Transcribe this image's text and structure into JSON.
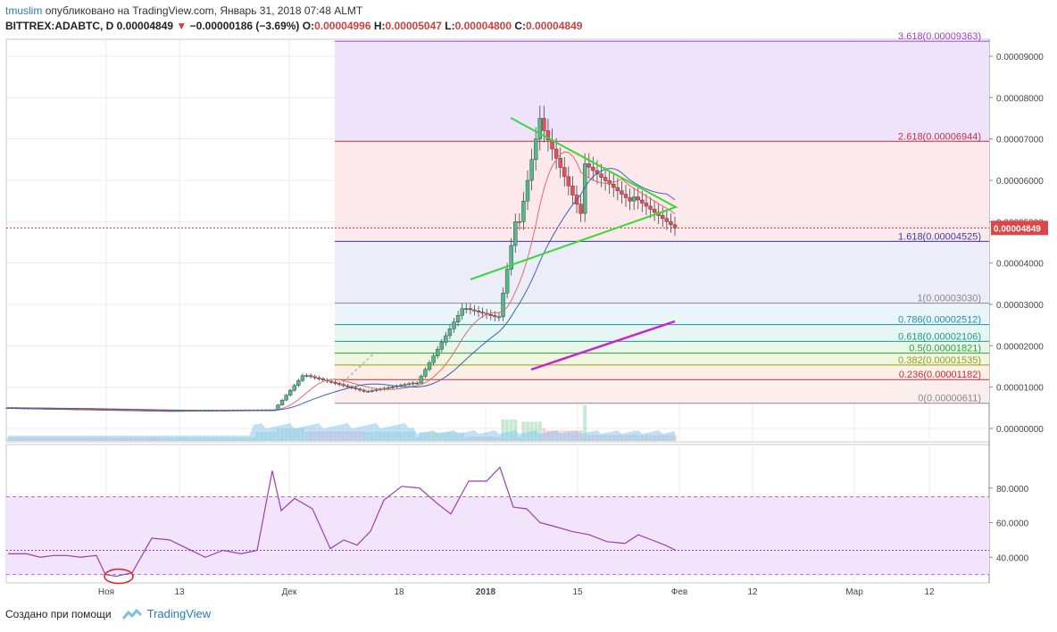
{
  "header": {
    "author": "tmuslim",
    "published": "опубликовано на TradingView.com, Январь 31, 2018 07:48 ALMT",
    "symbol": "BITTREX:ADABTC, D",
    "last": "0.00004849",
    "change": "−0.00000186 (−3.69%)",
    "o_label": "O:",
    "o_value": "0.00004996",
    "h_label": "H:",
    "h_value": "0.00005047",
    "l_label": "L:",
    "l_value": "0.00004800",
    "c_label": "C:",
    "c_value": "0.00004849"
  },
  "footer": {
    "created_with": "Создано при помощи",
    "brand": "TradingView"
  },
  "colors": {
    "up": "#53b987",
    "down": "#eb4d5c",
    "triangle": "#39d839",
    "trend": "#cc22cc",
    "rsi": "#9b3fb0"
  },
  "chart_data": {
    "type": "candlestick",
    "price_axis_labels": [
      "0.00009000",
      "0.00008000",
      "0.00007000",
      "0.00006000",
      "0.00005000",
      "0.00004000",
      "0.00003000",
      "0.00002000",
      "0.00001000",
      "0.00000000"
    ],
    "price_axis_values": [
      9e-05,
      8e-05,
      7e-05,
      6e-05,
      5e-05,
      4e-05,
      3e-05,
      2e-05,
      1e-05,
      0
    ],
    "last_price_label": "0.00004849",
    "x_axis_labels": [
      "Ноя",
      "13",
      "Дек",
      "18",
      "2018",
      "15",
      "Фев",
      "12",
      "Мар",
      "12"
    ],
    "fibonacci": [
      {
        "label": "3.618(0.00009363)",
        "value": 9.363e-05,
        "color": "#9c3fd0"
      },
      {
        "label": "2.618(0.00006944)",
        "value": 6.944e-05,
        "color": "#c0323e"
      },
      {
        "label": "1.618(0.00004525)",
        "value": 4.525e-05,
        "color": "#3a3aa8"
      },
      {
        "label": "1(0.00003030)",
        "value": 3.03e-05,
        "color": "#888888"
      },
      {
        "label": "0.786(0.00002512)",
        "value": 2.512e-05,
        "color": "#1f8fa8"
      },
      {
        "label": "0.618(0.00002106)",
        "value": 2.106e-05,
        "color": "#1f9a8a"
      },
      {
        "label": "0.5(0.00001821)",
        "value": 1.821e-05,
        "color": "#2f9f3a"
      },
      {
        "label": "0.382(0.00001535)",
        "value": 1.535e-05,
        "color": "#8fa020"
      },
      {
        "label": "0.236(0.00001182)",
        "value": 1.182e-05,
        "color": "#c0323e"
      },
      {
        "label": "0(0.00000611)",
        "value": 6.11e-06,
        "color": "#888888"
      }
    ],
    "rsi_axis_labels": [
      "80.0000",
      "60.0000",
      "40.0000"
    ],
    "rsi_axis_values": [
      80,
      60,
      40
    ],
    "rsi_band": [
      30,
      75
    ],
    "rsi_current": 44
  }
}
